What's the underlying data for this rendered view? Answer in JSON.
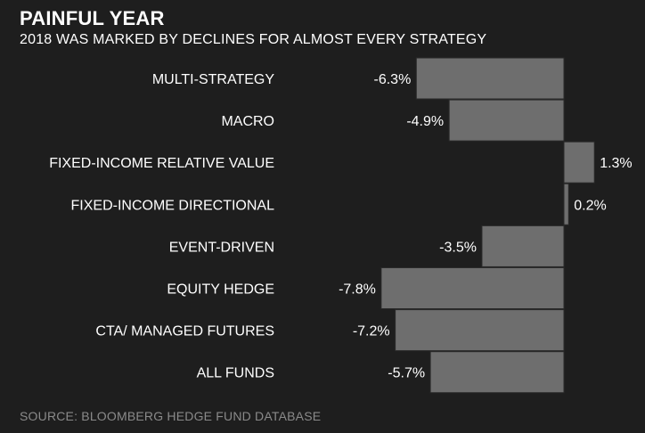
{
  "header": {
    "title": "PAINFUL YEAR",
    "subtitle": "2018 WAS MARKED BY DECLINES FOR ALMOST EVERY STRATEGY"
  },
  "footer": {
    "source": "SOURCE: BLOOMBERG HEDGE FUND DATABASE"
  },
  "colors": {
    "background": "#1e1e1e",
    "bar": "#6e6e6e",
    "text": "#ffffff",
    "source_text": "#8a8a8a"
  },
  "chart_data": {
    "type": "bar",
    "orientation": "horizontal",
    "title": "PAINFUL YEAR",
    "subtitle": "2018 WAS MARKED BY DECLINES FOR ALMOST EVERY STRATEGY",
    "categories": [
      "MULTI-STRATEGY",
      "MACRO",
      "FIXED-INCOME RELATIVE VALUE",
      "FIXED-INCOME DIRECTIONAL",
      "EVENT-DRIVEN",
      "EQUITY HEDGE",
      "CTA/ MANAGED FUTURES",
      "ALL FUNDS"
    ],
    "values": [
      -6.3,
      -4.9,
      1.3,
      0.2,
      -3.5,
      -7.8,
      -7.2,
      -5.7
    ],
    "value_labels": [
      "-6.3%",
      "-4.9%",
      "1.3%",
      "0.2%",
      "-3.5%",
      "-7.8%",
      "-7.2%",
      "-5.7%"
    ],
    "grid": false,
    "legend": "none"
  }
}
